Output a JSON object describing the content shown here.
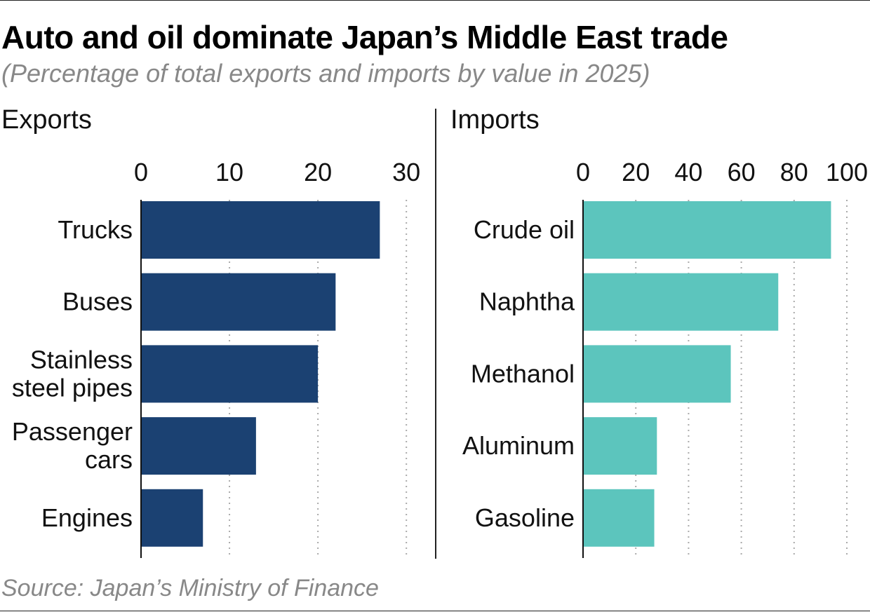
{
  "title": "Auto and oil dominate Japan’s Middle East trade",
  "subtitle": "(Percentage of total exports and imports by value in 2025)",
  "source": "Source: Japan’s Ministry of Finance",
  "colors": {
    "exports_bar": "#1b4172",
    "imports_bar": "#5cc5bd",
    "grid": "#aaaaaa"
  },
  "chart_data": [
    {
      "type": "bar",
      "orientation": "horizontal",
      "title": "Exports",
      "categories": [
        [
          "Trucks"
        ],
        [
          "Buses"
        ],
        [
          "Stainless",
          "steel pipes"
        ],
        [
          "Passenger",
          "cars"
        ],
        [
          "Engines"
        ]
      ],
      "values": [
        27,
        22,
        20,
        13,
        7
      ],
      "xlim": [
        0,
        33
      ],
      "xticks": [
        0,
        10,
        20,
        30
      ],
      "tick_position": "top",
      "grid": "vertical dotted"
    },
    {
      "type": "bar",
      "orientation": "horizontal",
      "title": "Imports",
      "categories": [
        [
          "Crude oil"
        ],
        [
          "Naphtha"
        ],
        [
          "Methanol"
        ],
        [
          "Aluminum"
        ],
        [
          "Gasoline"
        ]
      ],
      "values": [
        94,
        74,
        56,
        28,
        27
      ],
      "xlim": [
        0,
        100
      ],
      "xticks": [
        0,
        20,
        40,
        60,
        80,
        100
      ],
      "tick_position": "top",
      "grid": "vertical dotted"
    }
  ]
}
